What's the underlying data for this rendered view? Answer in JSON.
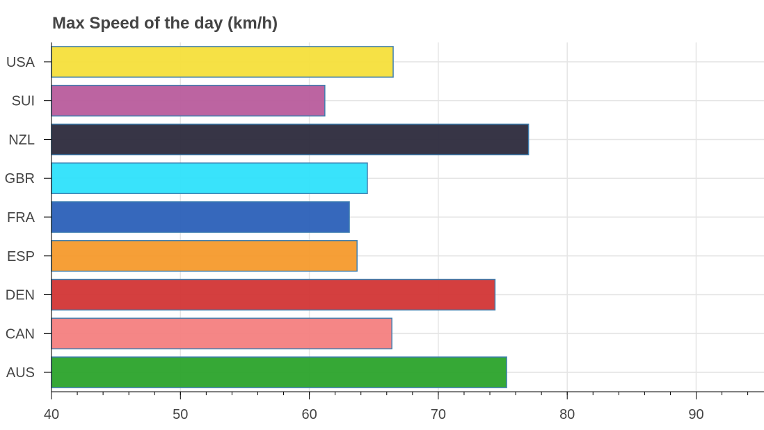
{
  "chart_data": {
    "type": "bar",
    "orientation": "horizontal",
    "title": "Max Speed of the day (km/h)",
    "xlabel": "",
    "ylabel": "",
    "categories": [
      "USA",
      "SUI",
      "NZL",
      "GBR",
      "FRA",
      "ESP",
      "DEN",
      "CAN",
      "AUS"
    ],
    "values": [
      66.5,
      61.2,
      77.0,
      64.5,
      63.1,
      63.7,
      74.4,
      66.4,
      75.3
    ],
    "colors": [
      "#f5df3b",
      "#b85c9c",
      "#2c2a3c",
      "#2ee1fb",
      "#2b60b8",
      "#f59a2c",
      "#d23535",
      "#f48080",
      "#2ba32b"
    ],
    "bar_outline_color": "#3f7fb0",
    "xlim": [
      40,
      95
    ],
    "x_ticks": [
      40,
      50,
      60,
      70,
      80,
      90
    ],
    "x_tick_labels": [
      "40",
      "50",
      "60",
      "70",
      "80",
      "90"
    ],
    "x_minor_tick_step": 2,
    "grid": true,
    "legend": "none"
  }
}
